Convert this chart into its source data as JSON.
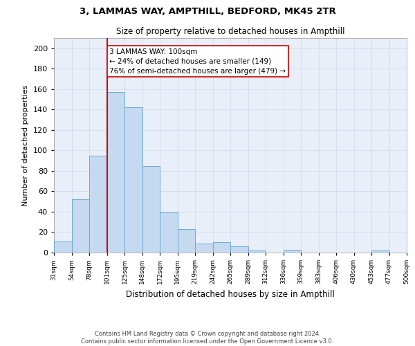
{
  "title": "3, LAMMAS WAY, AMPTHILL, BEDFORD, MK45 2TR",
  "subtitle": "Size of property relative to detached houses in Ampthill",
  "xlabel": "Distribution of detached houses by size in Ampthill",
  "ylabel": "Number of detached properties",
  "bar_values": [
    11,
    52,
    95,
    157,
    142,
    85,
    39,
    23,
    9,
    10,
    6,
    2,
    0,
    3,
    0,
    0,
    0,
    0,
    2,
    0
  ],
  "bin_labels": [
    "31sqm",
    "54sqm",
    "78sqm",
    "101sqm",
    "125sqm",
    "148sqm",
    "172sqm",
    "195sqm",
    "219sqm",
    "242sqm",
    "265sqm",
    "289sqm",
    "312sqm",
    "336sqm",
    "359sqm",
    "383sqm",
    "406sqm",
    "430sqm",
    "453sqm",
    "477sqm",
    "500sqm"
  ],
  "bar_color": "#c5d9f0",
  "bar_edge_color": "#6aaad4",
  "vline_color": "#cc0000",
  "annotation_text": "3 LAMMAS WAY: 100sqm\n← 24% of detached houses are smaller (149)\n76% of semi-detached houses are larger (479) →",
  "annotation_box_color": "#ffffff",
  "annotation_box_edge": "#cc0000",
  "ylim": [
    0,
    210
  ],
  "yticks": [
    0,
    20,
    40,
    60,
    80,
    100,
    120,
    140,
    160,
    180,
    200
  ],
  "grid_color": "#d0d8e8",
  "ax_bg_color": "#e8eff8",
  "background_color": "#ffffff",
  "footer_line1": "Contains HM Land Registry data © Crown copyright and database right 2024.",
  "footer_line2": "Contains public sector information licensed under the Open Government Licence v3.0."
}
